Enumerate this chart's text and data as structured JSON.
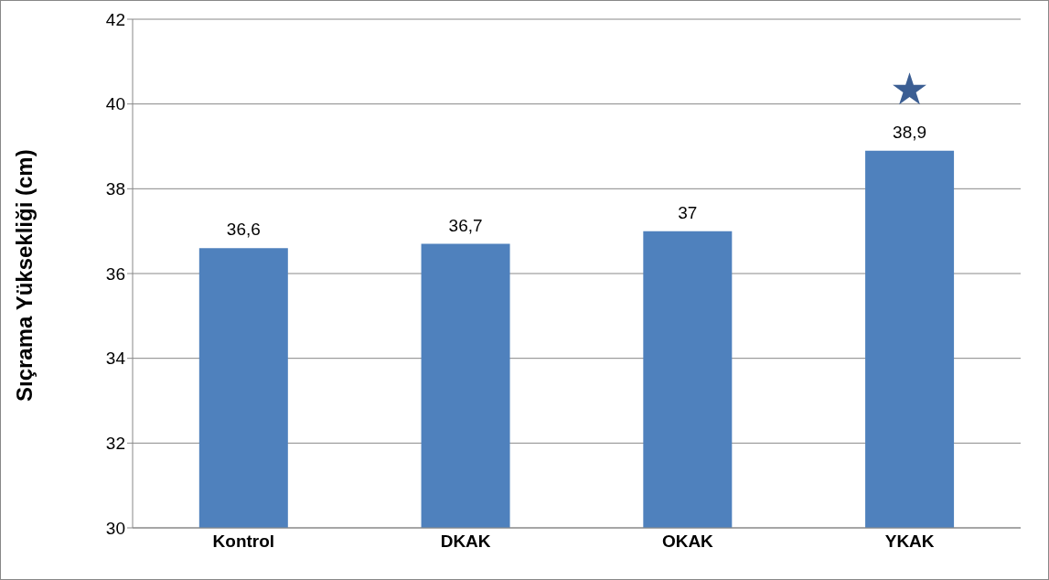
{
  "chart_data": {
    "type": "bar",
    "ylabel": "Sıçrama Yüksekliği (cm)",
    "categories": [
      "Kontrol",
      "DKAK",
      "OKAK",
      "YKAK"
    ],
    "values": [
      36.6,
      36.7,
      37,
      38.9
    ],
    "value_labels": [
      "36,6",
      "36,7",
      "37",
      "38,9"
    ],
    "color": "#4f81bd",
    "ylim": [
      30,
      42
    ],
    "yticks": [
      30,
      32,
      34,
      36,
      38,
      40,
      42
    ],
    "grid": "y",
    "annotations": [
      "★"
    ]
  }
}
